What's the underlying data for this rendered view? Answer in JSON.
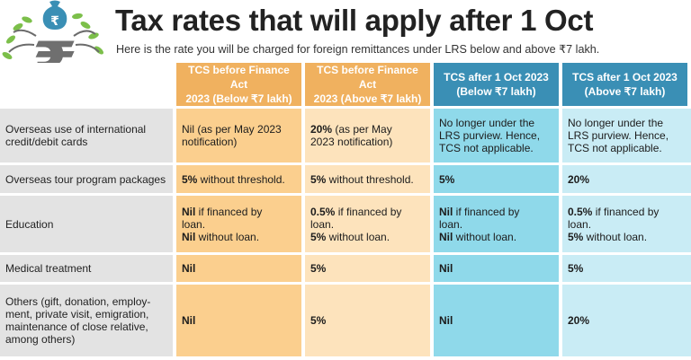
{
  "title": "Tax rates that will apply after 1 Oct",
  "subtitle": "Here is the rate you will be charged for foreign remittances under LRS below and above ₹7 lakh.",
  "logo": {
    "icon": "rupee-tree-icon",
    "symbol": "₹"
  },
  "colors": {
    "orange_header": "#f0b15f",
    "blue_header": "#3a8fb5",
    "col1": "#fbcf8e",
    "col2": "#fde3bc",
    "col3": "#8fd9ea",
    "col4": "#c9ecf5",
    "category": "#e3e3e3"
  },
  "headers": [
    {
      "line1": "TCS before Finance Act",
      "line2": "2023 (Below ₹7 lakh)"
    },
    {
      "line1": "TCS before Finance Act",
      "line2": "2023 (Above ₹7 lakh)"
    },
    {
      "line1": "TCS after 1 Oct 2023",
      "line2": "(Below ₹7 lakh)"
    },
    {
      "line1": "TCS  after 1 Oct 2023",
      "line2": "(Above ₹7 lakh)"
    }
  ],
  "rows": [
    {
      "category": [
        "Overseas use of international",
        "credit/debit cards"
      ],
      "cells": [
        [
          {
            "b": "",
            "t": "Nil (as per May 2023"
          },
          {
            "b": "",
            "t": "notification)"
          }
        ],
        [
          {
            "b": "20%",
            "t": " (as per May"
          },
          {
            "b": "",
            "t": "2023 notification)"
          }
        ],
        [
          {
            "b": "",
            "t": "No longer under the"
          },
          {
            "b": "",
            "t": "LRS purview. Hence,"
          },
          {
            "b": "",
            "t": "TCS not applicable."
          }
        ],
        [
          {
            "b": "",
            "t": "No longer under the"
          },
          {
            "b": "",
            "t": "LRS purview. Hence,"
          },
          {
            "b": "",
            "t": "TCS not applicable."
          }
        ]
      ]
    },
    {
      "category": [
        "Overseas tour program packages"
      ],
      "cells": [
        [
          {
            "b": "5%",
            "t": " without threshold."
          }
        ],
        [
          {
            "b": "5%",
            "t": " without threshold."
          }
        ],
        [
          {
            "b": "5%",
            "t": ""
          }
        ],
        [
          {
            "b": "20%",
            "t": ""
          }
        ]
      ]
    },
    {
      "category": [
        "Education"
      ],
      "cells": [
        [
          {
            "b": "Nil",
            "t": " if financed by"
          },
          {
            "b": "",
            "t": "loan."
          },
          {
            "b": "Nil",
            "t": " without loan."
          }
        ],
        [
          {
            "b": "0.5%",
            "t": " if financed by"
          },
          {
            "b": "",
            "t": "loan."
          },
          {
            "b": "5%",
            "t": " without loan."
          }
        ],
        [
          {
            "b": "Nil",
            "t": " if financed by"
          },
          {
            "b": "",
            "t": "loan."
          },
          {
            "b": "Nil",
            "t": " without loan."
          }
        ],
        [
          {
            "b": "0.5%",
            "t": " if financed by"
          },
          {
            "b": "",
            "t": "loan."
          },
          {
            "b": "5%",
            "t": " without loan."
          }
        ]
      ]
    },
    {
      "category": [
        "Medical treatment"
      ],
      "cells": [
        [
          {
            "b": "Nil",
            "t": ""
          }
        ],
        [
          {
            "b": "5%",
            "t": ""
          }
        ],
        [
          {
            "b": "Nil",
            "t": ""
          }
        ],
        [
          {
            "b": "5%",
            "t": ""
          }
        ]
      ]
    },
    {
      "category": [
        "Others (gift, donation, employ-",
        "ment, private visit, emigration,",
        "maintenance of close relative,",
        "among others)"
      ],
      "cells": [
        [
          {
            "b": "Nil",
            "t": ""
          }
        ],
        [
          {
            "b": "5%",
            "t": ""
          }
        ],
        [
          {
            "b": "Nil",
            "t": ""
          }
        ],
        [
          {
            "b": "20%",
            "t": ""
          }
        ]
      ]
    }
  ]
}
